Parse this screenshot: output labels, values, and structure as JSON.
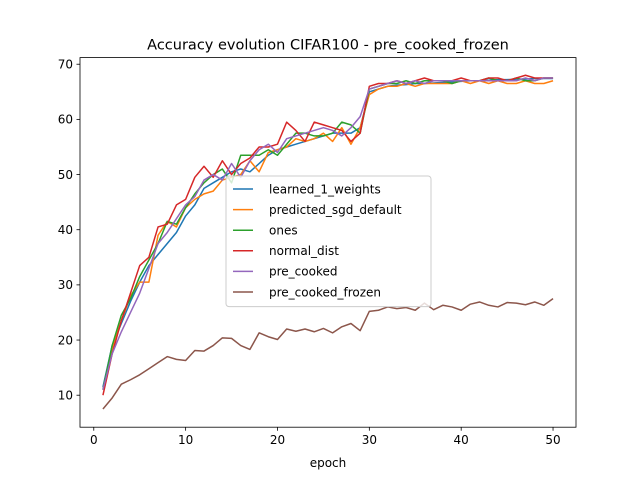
{
  "chart_data": {
    "type": "line",
    "title": "Accuracy evolution CIFAR100 - pre_cooked_frozen",
    "xlabel": "epoch",
    "ylabel": "",
    "xlim": [
      -1.5,
      52.5
    ],
    "ylim": [
      4.2,
      71.2
    ],
    "xticks": [
      0,
      10,
      20,
      30,
      40,
      50
    ],
    "yticks": [
      10,
      20,
      30,
      40,
      50,
      60,
      70
    ],
    "grid": false,
    "legend_position": "center",
    "x": [
      1,
      2,
      3,
      4,
      5,
      6,
      7,
      8,
      9,
      10,
      11,
      12,
      13,
      14,
      15,
      16,
      17,
      18,
      19,
      20,
      21,
      22,
      23,
      24,
      25,
      26,
      27,
      28,
      29,
      30,
      31,
      32,
      33,
      34,
      35,
      36,
      37,
      38,
      39,
      40,
      41,
      42,
      43,
      44,
      45,
      46,
      47,
      48,
      49,
      50
    ],
    "series": [
      {
        "name": "learned_1_weights",
        "color": "#1f77b4",
        "values": [
          11.5,
          19.0,
          23.0,
          27.0,
          30.5,
          33.5,
          35.5,
          37.5,
          39.5,
          42.5,
          44.5,
          47.5,
          48.5,
          49.5,
          50.5,
          51.0,
          50.5,
          52.0,
          53.5,
          54.5,
          55.0,
          55.5,
          56.0,
          56.5,
          57.0,
          57.5,
          57.5,
          57.5,
          58.5,
          65.0,
          65.5,
          66.0,
          66.2,
          66.3,
          66.5,
          66.5,
          66.6,
          66.7,
          66.8,
          66.9,
          67.0,
          67.0,
          67.1,
          67.2,
          67.2,
          67.3,
          67.3,
          67.4,
          67.4,
          67.4
        ]
      },
      {
        "name": "predicted_sgd_default",
        "color": "#ff7f0e",
        "values": [
          11.0,
          18.5,
          23.5,
          28.0,
          30.5,
          30.5,
          39.0,
          41.5,
          40.5,
          44.0,
          45.5,
          46.5,
          47.0,
          49.0,
          49.5,
          50.0,
          52.5,
          50.5,
          54.0,
          54.5,
          55.0,
          56.5,
          56.0,
          56.5,
          57.5,
          56.0,
          58.5,
          55.5,
          58.5,
          64.5,
          65.5,
          66.0,
          66.0,
          66.5,
          66.0,
          66.5,
          66.5,
          66.5,
          66.5,
          67.0,
          66.5,
          67.0,
          66.5,
          67.0,
          66.5,
          66.5,
          67.0,
          66.5,
          66.5,
          67.0
        ]
      },
      {
        "name": "ones",
        "color": "#2ca02c",
        "values": [
          11.0,
          19.0,
          24.5,
          27.5,
          31.5,
          34.5,
          37.5,
          41.5,
          41.0,
          44.0,
          46.5,
          48.5,
          50.0,
          51.0,
          48.5,
          53.5,
          53.5,
          53.5,
          54.5,
          53.5,
          55.5,
          57.5,
          57.5,
          57.0,
          57.0,
          57.5,
          59.5,
          59.0,
          57.5,
          65.5,
          66.0,
          66.5,
          66.5,
          67.0,
          66.5,
          67.0,
          67.0,
          67.0,
          66.5,
          67.0,
          67.0,
          67.0,
          67.5,
          67.0,
          67.0,
          67.5,
          67.0,
          67.0,
          67.5,
          67.5
        ]
      },
      {
        "name": "normal_dist",
        "color": "#d62728",
        "values": [
          10.0,
          17.5,
          23.5,
          28.5,
          33.5,
          35.0,
          40.5,
          41.0,
          44.5,
          45.5,
          49.5,
          51.5,
          49.5,
          52.5,
          50.0,
          52.0,
          53.0,
          55.0,
          55.0,
          55.5,
          59.5,
          58.0,
          56.0,
          59.5,
          59.0,
          58.5,
          58.0,
          56.0,
          57.5,
          66.0,
          66.5,
          66.5,
          67.0,
          66.5,
          67.0,
          67.5,
          67.0,
          67.0,
          67.0,
          67.5,
          67.0,
          67.0,
          67.5,
          67.5,
          67.0,
          67.5,
          68.0,
          67.5,
          67.5,
          67.5
        ]
      },
      {
        "name": "pre_cooked",
        "color": "#9467bd",
        "values": [
          11.0,
          17.5,
          21.5,
          25.0,
          28.5,
          33.0,
          37.5,
          39.5,
          42.0,
          44.5,
          46.0,
          49.0,
          50.0,
          49.0,
          52.0,
          49.5,
          52.5,
          54.5,
          55.5,
          54.0,
          56.5,
          57.0,
          57.5,
          58.0,
          58.5,
          58.0,
          57.0,
          58.5,
          60.5,
          65.5,
          66.0,
          66.5,
          67.0,
          66.5,
          67.0,
          66.5,
          67.0,
          67.0,
          67.0,
          67.0,
          67.0,
          67.0,
          67.0,
          67.0,
          67.0,
          67.0,
          67.5,
          67.0,
          67.5,
          67.5
        ]
      },
      {
        "name": "pre_cooked_frozen",
        "color": "#8c564b",
        "values": [
          7.5,
          9.5,
          12.0,
          12.8,
          13.7,
          14.8,
          15.9,
          17.0,
          16.5,
          16.3,
          18.1,
          18.0,
          19.0,
          20.4,
          20.3,
          19.0,
          18.3,
          21.3,
          20.6,
          20.1,
          22.0,
          21.6,
          22.0,
          21.5,
          22.1,
          21.3,
          22.4,
          23.0,
          21.7,
          25.2,
          25.4,
          26.0,
          25.7,
          25.9,
          25.4,
          26.7,
          25.5,
          26.3,
          26.0,
          25.4,
          26.5,
          26.9,
          26.3,
          26.0,
          26.8,
          26.7,
          26.4,
          26.9,
          26.3,
          27.5
        ]
      }
    ]
  }
}
